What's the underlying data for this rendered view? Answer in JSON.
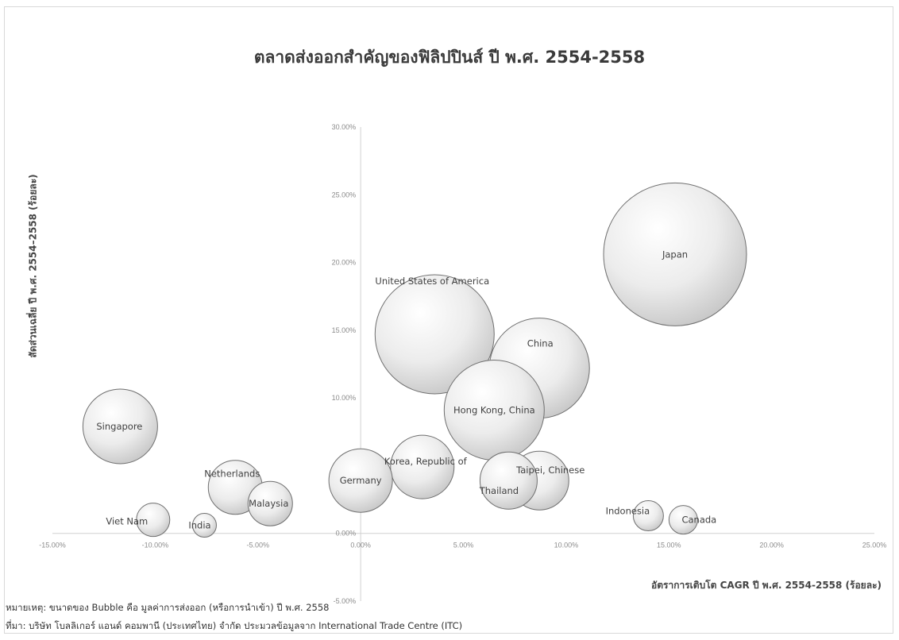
{
  "chart_data": {
    "type": "bubble",
    "title": "ตลาดส่งออกสำคัญของฟิลิปปินส์ ปี พ.ศ. 2554-2558",
    "xlabel": "อัตราการเติบโต CAGR ปี พ.ศ. 2554-2558 (ร้อยละ)",
    "ylabel": "สัดส่วนเฉลี่ย ปี พ.ศ. 2554–2558 (ร้อยละ)",
    "xlim": [
      -15,
      25
    ],
    "ylim": [
      -5,
      30
    ],
    "x_ticks": [
      "-15.00%",
      "-10.00%",
      "-5.00%",
      "0.00%",
      "5.00%",
      "10.00%",
      "15.00%",
      "20.00%",
      "25.00%"
    ],
    "y_ticks": [
      "-5.00%",
      "0.00%",
      "5.00%",
      "10.00%",
      "15.00%",
      "20.00%",
      "25.00%",
      "30.00%"
    ],
    "points": [
      {
        "label": "Japan",
        "x": 15.3,
        "y": 20.6,
        "size": 90
      },
      {
        "label": "United States of America",
        "x": 3.6,
        "y": 14.7,
        "size": 75
      },
      {
        "label": "China",
        "x": 8.7,
        "y": 12.2,
        "size": 63
      },
      {
        "label": "Hong Kong, China",
        "x": 6.5,
        "y": 9.1,
        "size": 63
      },
      {
        "label": "Singapore",
        "x": -11.7,
        "y": 7.9,
        "size": 47
      },
      {
        "label": "Korea, Republic of",
        "x": 3.0,
        "y": 4.9,
        "size": 40
      },
      {
        "label": "Germany",
        "x": 0.0,
        "y": 3.9,
        "size": 40
      },
      {
        "label": "Thailand",
        "x": 7.2,
        "y": 3.9,
        "size": 36
      },
      {
        "label": "Taipei, Chinese",
        "x": 8.7,
        "y": 3.9,
        "size": 37
      },
      {
        "label": "Netherlands",
        "x": -6.1,
        "y": 3.4,
        "size": 34
      },
      {
        "label": "Malaysia",
        "x": -4.4,
        "y": 2.2,
        "size": 28
      },
      {
        "label": "Viet Nam",
        "x": -10.1,
        "y": 1.0,
        "size": 21
      },
      {
        "label": "India",
        "x": -7.6,
        "y": 0.6,
        "size": 15
      },
      {
        "label": "Indonesia",
        "x": 14.0,
        "y": 1.3,
        "size": 19
      },
      {
        "label": "Canada",
        "x": 15.7,
        "y": 1.0,
        "size": 18
      }
    ]
  },
  "notes": {
    "note1": "หมายเหตุ: ขนาดของ Bubble คือ มูลค่าการส่งออก (หรือการนำเข้า) ปี พ.ศ. 2558",
    "note2": "ที่มา: บริษัท โบลลิเกอร์ แอนด์ คอมพานี (ประเทศไทย) จำกัด ประมวลข้อมูลจาก International Trade Centre (ITC)"
  }
}
